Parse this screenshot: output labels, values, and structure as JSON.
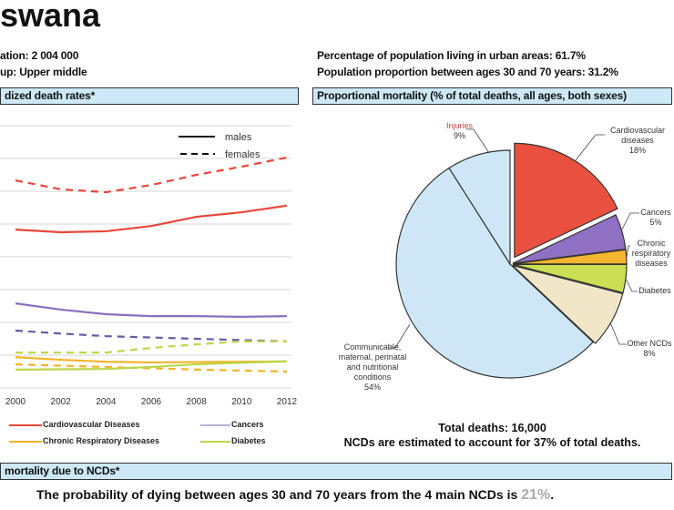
{
  "header": {
    "title": "swana",
    "population": "ation:  2 004 000",
    "income_group": "up:  Upper middle",
    "urban": "Percentage of population living in urban areas: 61.7%",
    "age_30_70": "Population proportion between ages 30 and 70 years:  31.2%"
  },
  "sections": {
    "death_rates": "dized death rates*",
    "proportional": "Proportional mortality (% of total deaths, all ages, both sexes)",
    "premature": "mortality due to NCDs*"
  },
  "pie_footer": {
    "total": "Total deaths: 16,000",
    "ncd_share": "NCDs are estimated to account for 37% of total deaths."
  },
  "probability": {
    "text": "The probability of dying between ages 30 and 70 years from the 4 main NCDs is",
    "value": "21%",
    "end": ".",
    "value_color": "#aaaaaa"
  },
  "chart_data": [
    {
      "type": "line",
      "title": "",
      "xlabel": "",
      "ylabel": "",
      "x": [
        2000,
        2002,
        2004,
        2006,
        2008,
        2010,
        2012
      ],
      "x_tick_labels": [
        "2000",
        "2002",
        "2004",
        "2006",
        "2008",
        "2010",
        "2012"
      ],
      "ylim": [
        0,
        800
      ],
      "grid": true,
      "style_legend": {
        "males": "males",
        "females": "females",
        "placement": "top-right"
      },
      "series_legend": [
        {
          "name": "Cardiovascular Diseases",
          "color": "#e8463a"
        },
        {
          "name": "Cancers",
          "color": "#9a88c8"
        },
        {
          "name": "Chronic Respiratory Diseases",
          "color": "#f4b32a"
        },
        {
          "name": "Diabetes",
          "color": "#bcd64a"
        }
      ],
      "series": [
        {
          "disease": "Cardiovascular Diseases",
          "sex": "females",
          "color": "#e8463a",
          "dashed": true,
          "values": [
            633,
            606,
            597,
            619,
            650,
            675,
            703
          ]
        },
        {
          "disease": "Cardiovascular Diseases",
          "sex": "males",
          "color": "#e8463a",
          "dashed": false,
          "values": [
            483,
            475,
            478,
            494,
            522,
            536,
            556
          ]
        },
        {
          "disease": "Cancers",
          "sex": "males",
          "color": "#8a70c0",
          "dashed": false,
          "values": [
            258,
            239,
            225,
            219,
            219,
            217,
            219
          ]
        },
        {
          "disease": "Cancers",
          "sex": "females",
          "color": "#6b5aa8",
          "dashed": true,
          "values": [
            175,
            166,
            158,
            154,
            150,
            146,
            142
          ]
        },
        {
          "disease": "Diabetes",
          "sex": "females",
          "color": "#bcd64a",
          "dashed": true,
          "values": [
            108,
            108,
            108,
            122,
            133,
            142,
            142
          ]
        },
        {
          "disease": "Chronic Respiratory Diseases",
          "sex": "males",
          "color": "#f4b32a",
          "dashed": false,
          "values": [
            94,
            86,
            80,
            78,
            79,
            80,
            81
          ]
        },
        {
          "disease": "Chronic Respiratory Diseases",
          "sex": "females",
          "color": "#f4b32a",
          "dashed": true,
          "values": [
            72,
            68,
            64,
            60,
            56,
            53,
            50
          ]
        },
        {
          "disease": "Diabetes",
          "sex": "males",
          "color": "#bcd64a",
          "dashed": false,
          "values": [
            56,
            57,
            58,
            64,
            72,
            77,
            81
          ]
        }
      ]
    },
    {
      "type": "pie",
      "title": "",
      "slices": [
        {
          "label": "Cardiovascular diseases",
          "value": 18,
          "value_label": "18%",
          "color": "#ea5040",
          "exploded": true
        },
        {
          "label": "Cancers",
          "value": 5,
          "value_label": "5%",
          "color": "#8f70c2"
        },
        {
          "label": "Chronic respiratory diseases",
          "value": 2,
          "value_label": "",
          "color": "#f6b52e"
        },
        {
          "label": "Diabetes",
          "value": 4,
          "value_label": "",
          "color": "#cbdf55"
        },
        {
          "label": "Other NCDs",
          "value": 8,
          "value_label": "8%",
          "color": "#f1e7c8"
        },
        {
          "label": "Communicable, maternal, perinatal and nutritional conditions",
          "value": 54,
          "value_label": "54%",
          "color": "#cde7f7"
        },
        {
          "label": "Injuries",
          "value": 9,
          "value_label": "9%",
          "color": "#cde7f7"
        }
      ]
    }
  ]
}
